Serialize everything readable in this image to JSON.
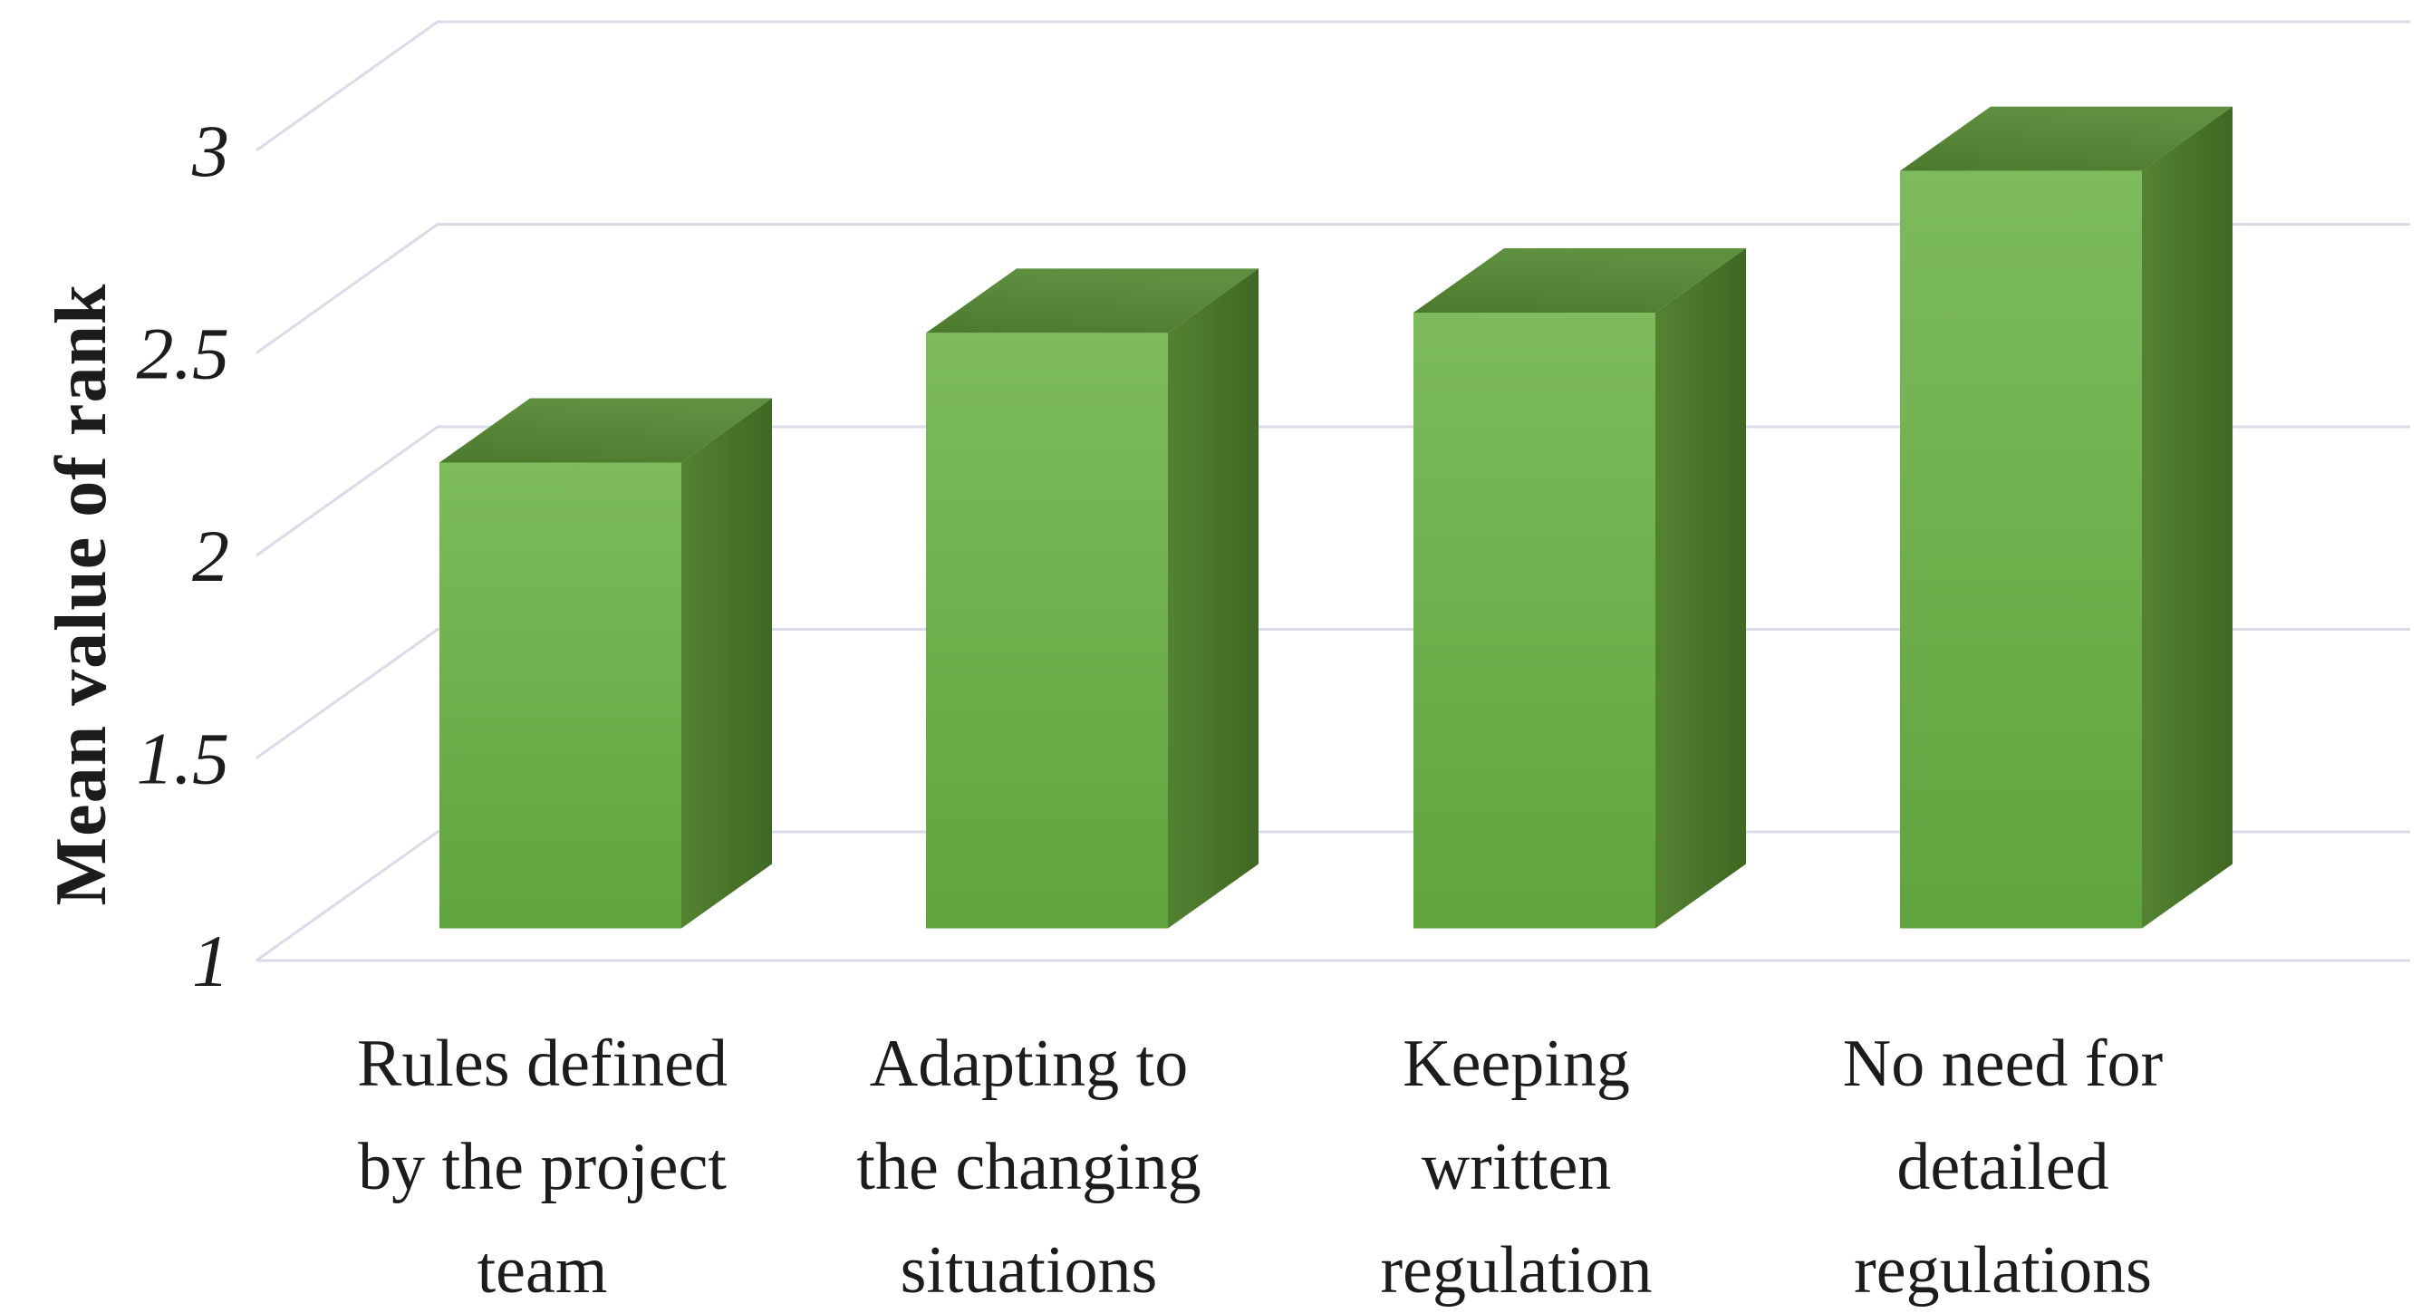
{
  "figure": {
    "background": "#ffffff"
  },
  "chart_data": {
    "type": "bar",
    "projection": "3d",
    "title": "",
    "ylabel": "Mean value of rank",
    "xlabel": "",
    "categories": [
      "Rules defined by the project team",
      "Adapting to the changing situations",
      "Keeping written regulation",
      "No need for detailed regulations"
    ],
    "category_lines": [
      [
        "Rules defined",
        "by the project",
        "team"
      ],
      [
        "Adapting to",
        "the changing",
        "situations"
      ],
      [
        "Keeping",
        "written",
        "regulation"
      ],
      [
        "No need for",
        "detailed",
        "regulations"
      ]
    ],
    "values": [
      2.15,
      2.47,
      2.52,
      2.87
    ],
    "ylim": [
      1,
      3
    ],
    "yticks": [
      3,
      2.5,
      2,
      1.5,
      1
    ],
    "ytick_labels": [
      "3",
      "2.5",
      "2",
      "1.5",
      "1"
    ],
    "grid": true,
    "legend": false,
    "bar_color_name": "green",
    "colors": {
      "bar_front_top": "#7dbb5d",
      "bar_front_bottom": "#60a43d",
      "bar_top_front": "#4c7a2c",
      "bar_top_back": "#5f9040",
      "bar_side_left": "#538331",
      "bar_side_right": "#3f6822",
      "gridline": "#d9dce8",
      "text": "#1c1c1c"
    }
  }
}
